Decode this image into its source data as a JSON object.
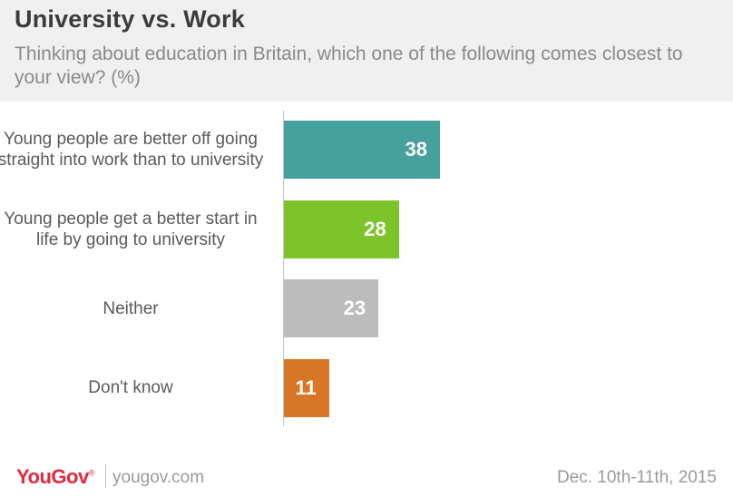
{
  "header": {
    "title": "University vs. Work",
    "subtitle": "Thinking about education in Britain, which one of the following comes closest to your view? (%)"
  },
  "chart_data": {
    "type": "bar",
    "orientation": "horizontal",
    "title": "University vs. Work",
    "subtitle": "Thinking about education in Britain, which one of the following comes closest to your view? (%)",
    "categories": [
      "Young people are better off going straight into work than to university",
      "Young people get a better start in life by going to university",
      "Neither",
      "Don't know"
    ],
    "values": [
      38,
      28,
      23,
      11
    ],
    "colors": [
      "#46a09c",
      "#7dc42a",
      "#bcbcbc",
      "#d67626"
    ],
    "xlabel": "",
    "ylabel": "",
    "xlim": [
      0,
      100
    ],
    "grid": false,
    "legend": "none"
  },
  "footer": {
    "brand": "YouGov",
    "site": "yougov.com",
    "date": "Dec. 10th-11th, 2015"
  }
}
